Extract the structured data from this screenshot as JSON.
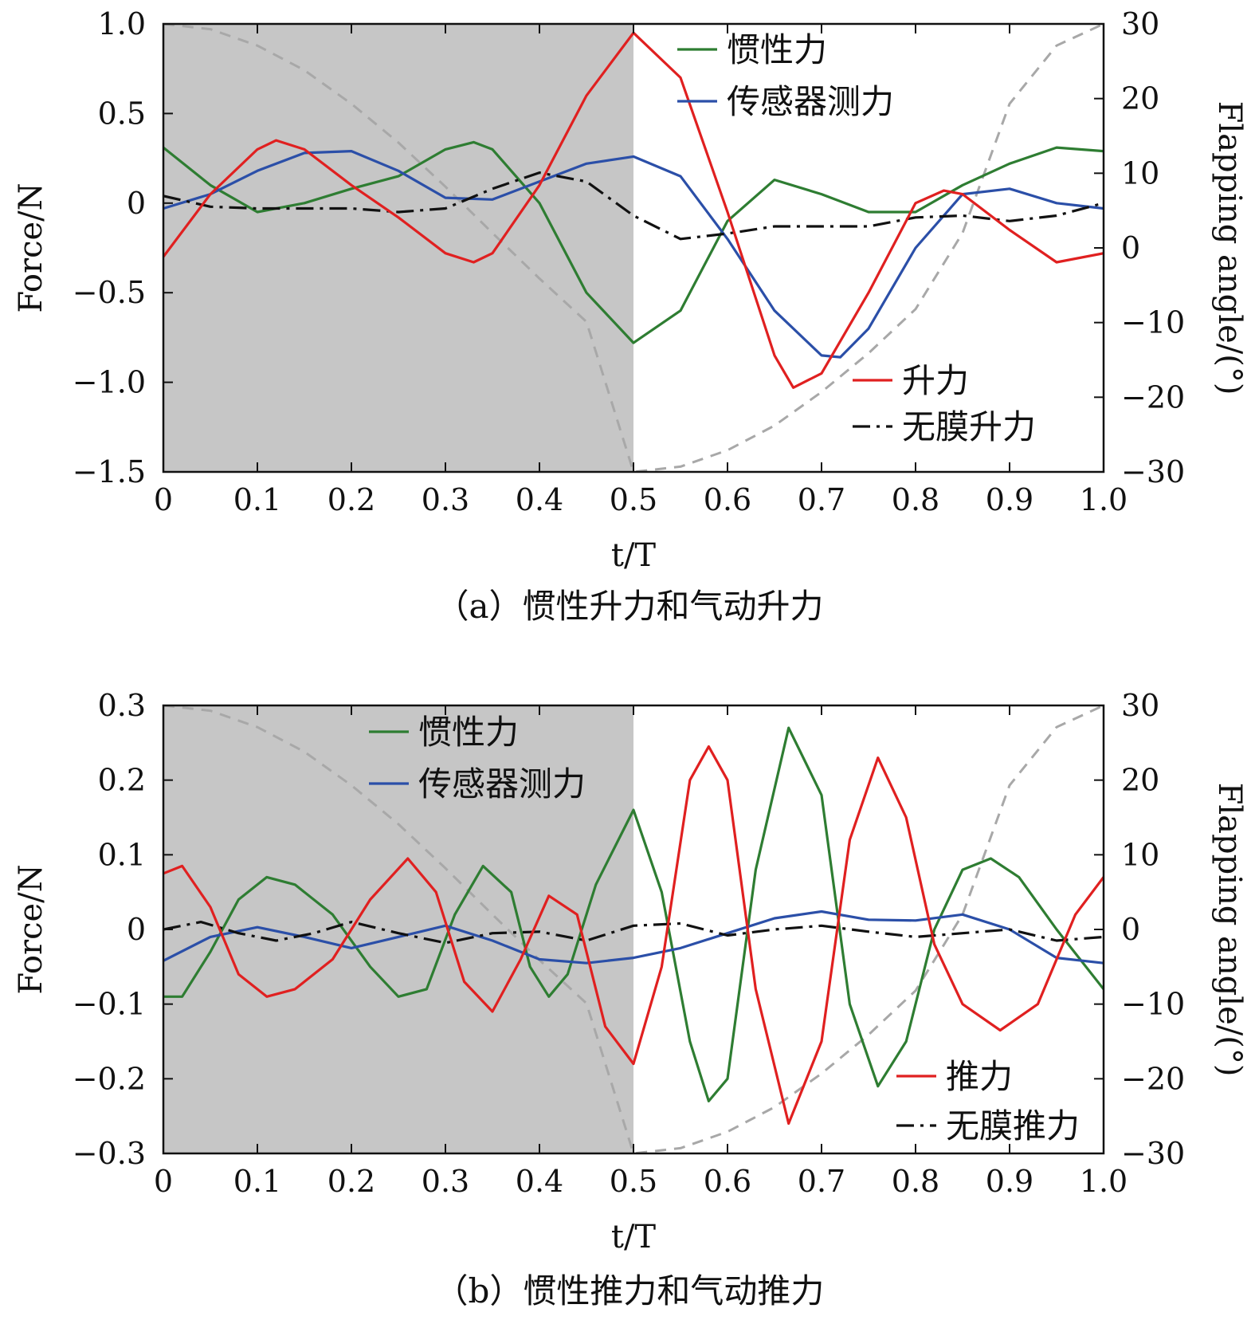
{
  "chart_data": [
    {
      "type": "line",
      "caption": "（a）惯性升力和气动升力",
      "xlabel": "t/T",
      "ylabel": "Force/N",
      "ylabel_right": "Flapping angle/(°)",
      "xlim": [
        0,
        1
      ],
      "ylim": [
        -1.5,
        1.0
      ],
      "ylim_right": [
        -30,
        30
      ],
      "x_ticks": [
        "0",
        "0.1",
        "0.2",
        "0.3",
        "0.4",
        "0.5",
        "0.6",
        "0.7",
        "0.8",
        "0.9",
        "1.0"
      ],
      "y_ticks": [
        "1.0",
        "0.5",
        "0",
        "−0.5",
        "−1.0",
        "−1.5"
      ],
      "y_right_ticks": [
        "30",
        "20",
        "10",
        "0",
        "−10",
        "−20",
        "−30"
      ],
      "shaded_region": [
        0,
        0.5
      ],
      "series": [
        {
          "name": "惯性力",
          "color": "#2e7d32",
          "style": "solid",
          "x": [
            0,
            0.05,
            0.1,
            0.15,
            0.2,
            0.25,
            0.3,
            0.33,
            0.35,
            0.4,
            0.45,
            0.5,
            0.55,
            0.6,
            0.65,
            0.7,
            0.75,
            0.8,
            0.85,
            0.9,
            0.95,
            1.0
          ],
          "y": [
            0.31,
            0.1,
            -0.05,
            0.0,
            0.08,
            0.15,
            0.3,
            0.34,
            0.3,
            0.0,
            -0.5,
            -0.78,
            -0.6,
            -0.1,
            0.13,
            0.05,
            -0.05,
            -0.05,
            0.1,
            0.22,
            0.31,
            0.29
          ]
        },
        {
          "name": "传感器测力",
          "color": "#2b4fa8",
          "style": "solid",
          "x": [
            0,
            0.05,
            0.1,
            0.15,
            0.2,
            0.25,
            0.3,
            0.35,
            0.4,
            0.45,
            0.5,
            0.55,
            0.6,
            0.65,
            0.7,
            0.72,
            0.75,
            0.8,
            0.85,
            0.9,
            0.95,
            1.0
          ],
          "y": [
            -0.03,
            0.05,
            0.18,
            0.28,
            0.29,
            0.18,
            0.03,
            0.02,
            0.12,
            0.22,
            0.26,
            0.15,
            -0.2,
            -0.6,
            -0.85,
            -0.86,
            -0.7,
            -0.25,
            0.05,
            0.08,
            0.0,
            -0.03
          ]
        },
        {
          "name": "升力",
          "color": "#e02020",
          "style": "solid",
          "x": [
            0,
            0.05,
            0.1,
            0.12,
            0.15,
            0.2,
            0.25,
            0.3,
            0.33,
            0.35,
            0.4,
            0.45,
            0.5,
            0.55,
            0.6,
            0.65,
            0.67,
            0.7,
            0.75,
            0.8,
            0.83,
            0.85,
            0.9,
            0.95,
            1.0
          ],
          "y": [
            -0.3,
            0.05,
            0.3,
            0.35,
            0.3,
            0.1,
            -0.08,
            -0.28,
            -0.33,
            -0.28,
            0.1,
            0.6,
            0.95,
            0.7,
            -0.05,
            -0.85,
            -1.03,
            -0.95,
            -0.5,
            0.0,
            0.07,
            0.05,
            -0.15,
            -0.33,
            -0.28
          ]
        },
        {
          "name": "无膜升力",
          "color": "#111111",
          "style": "dashdot",
          "x": [
            0,
            0.05,
            0.1,
            0.15,
            0.2,
            0.25,
            0.3,
            0.35,
            0.4,
            0.45,
            0.5,
            0.55,
            0.6,
            0.65,
            0.7,
            0.75,
            0.8,
            0.85,
            0.9,
            0.95,
            1.0
          ],
          "y": [
            0.04,
            -0.02,
            -0.03,
            -0.03,
            -0.03,
            -0.05,
            -0.03,
            0.08,
            0.17,
            0.12,
            -0.07,
            -0.2,
            -0.17,
            -0.13,
            -0.13,
            -0.13,
            -0.08,
            -0.07,
            -0.1,
            -0.07,
            0.0
          ]
        },
        {
          "name": "",
          "color": "#a8a8a8",
          "style": "dashed",
          "axis": "right",
          "x": [
            0,
            0.05,
            0.1,
            0.15,
            0.2,
            0.25,
            0.3,
            0.35,
            0.4,
            0.45,
            0.5,
            0.55,
            0.6,
            0.65,
            0.7,
            0.75,
            0.8,
            0.85,
            0.9,
            0.95,
            1.0
          ],
          "y": [
            30,
            29.3,
            27.1,
            23.8,
            19.3,
            14.1,
            8.2,
            2.0,
            -4.1,
            -9.9,
            -30,
            -29.3,
            -27.1,
            -23.8,
            -19.3,
            -14.1,
            -8.2,
            2.0,
            19.3,
            27.1,
            30
          ]
        }
      ]
    },
    {
      "type": "line",
      "caption": "（b）惯性推力和气动推力",
      "xlabel": "t/T",
      "ylabel": "Force/N",
      "ylabel_right": "Flapping angle/(°)",
      "xlim": [
        0,
        1
      ],
      "ylim": [
        -0.3,
        0.3
      ],
      "ylim_right": [
        -30,
        30
      ],
      "x_ticks": [
        "0",
        "0.1",
        "0.2",
        "0.3",
        "0.4",
        "0.5",
        "0.6",
        "0.7",
        "0.8",
        "0.9",
        "1.0"
      ],
      "y_ticks": [
        "0.3",
        "0.2",
        "0.1",
        "0",
        "−0.1",
        "−0.2",
        "−0.3"
      ],
      "y_right_ticks": [
        "30",
        "20",
        "10",
        "0",
        "−10",
        "−20",
        "−30"
      ],
      "shaded_region": [
        0,
        0.5
      ],
      "series": [
        {
          "name": "惯性力",
          "color": "#2e7d32",
          "style": "solid",
          "x": [
            0,
            0.02,
            0.05,
            0.08,
            0.11,
            0.14,
            0.18,
            0.22,
            0.25,
            0.28,
            0.31,
            0.34,
            0.37,
            0.39,
            0.41,
            0.43,
            0.46,
            0.5,
            0.53,
            0.56,
            0.58,
            0.6,
            0.63,
            0.665,
            0.7,
            0.73,
            0.76,
            0.79,
            0.82,
            0.85,
            0.88,
            0.91,
            0.95,
            1.0
          ],
          "y": [
            -0.09,
            -0.09,
            -0.03,
            0.04,
            0.07,
            0.06,
            0.02,
            -0.05,
            -0.09,
            -0.08,
            0.02,
            0.085,
            0.05,
            -0.05,
            -0.09,
            -0.06,
            0.06,
            0.16,
            0.05,
            -0.15,
            -0.23,
            -0.2,
            0.08,
            0.27,
            0.18,
            -0.1,
            -0.21,
            -0.15,
            0.0,
            0.08,
            0.095,
            0.07,
            0.0,
            -0.08
          ]
        },
        {
          "name": "传感器测力",
          "color": "#2b4fa8",
          "style": "solid",
          "x": [
            0,
            0.05,
            0.1,
            0.15,
            0.2,
            0.25,
            0.3,
            0.35,
            0.4,
            0.45,
            0.5,
            0.55,
            0.6,
            0.65,
            0.7,
            0.75,
            0.8,
            0.85,
            0.9,
            0.95,
            1.0
          ],
          "y": [
            -0.042,
            -0.01,
            0.003,
            -0.01,
            -0.025,
            -0.01,
            0.005,
            -0.015,
            -0.04,
            -0.045,
            -0.038,
            -0.025,
            -0.005,
            0.015,
            0.024,
            0.013,
            0.012,
            0.02,
            0.0,
            -0.038,
            -0.045
          ]
        },
        {
          "name": "推力",
          "color": "#e02020",
          "style": "solid",
          "x": [
            0,
            0.02,
            0.05,
            0.08,
            0.11,
            0.14,
            0.18,
            0.22,
            0.26,
            0.29,
            0.32,
            0.35,
            0.38,
            0.41,
            0.44,
            0.47,
            0.5,
            0.53,
            0.56,
            0.58,
            0.6,
            0.63,
            0.665,
            0.7,
            0.73,
            0.76,
            0.79,
            0.82,
            0.85,
            0.89,
            0.93,
            0.97,
            1.0
          ],
          "y": [
            0.075,
            0.085,
            0.03,
            -0.06,
            -0.09,
            -0.08,
            -0.04,
            0.04,
            0.095,
            0.05,
            -0.07,
            -0.11,
            -0.04,
            0.045,
            0.02,
            -0.13,
            -0.18,
            -0.05,
            0.2,
            0.245,
            0.2,
            -0.08,
            -0.26,
            -0.15,
            0.12,
            0.23,
            0.15,
            -0.02,
            -0.1,
            -0.135,
            -0.1,
            0.02,
            0.07
          ]
        },
        {
          "name": "无膜推力",
          "color": "#111111",
          "style": "dashdot",
          "x": [
            0,
            0.04,
            0.08,
            0.12,
            0.16,
            0.2,
            0.25,
            0.3,
            0.35,
            0.4,
            0.45,
            0.5,
            0.55,
            0.6,
            0.65,
            0.7,
            0.75,
            0.8,
            0.85,
            0.9,
            0.95,
            1.0
          ],
          "y": [
            0.0,
            0.01,
            -0.005,
            -0.015,
            -0.005,
            0.01,
            -0.005,
            -0.018,
            -0.005,
            -0.003,
            -0.015,
            0.005,
            0.008,
            -0.008,
            0.0,
            0.005,
            -0.003,
            -0.01,
            -0.005,
            0.0,
            -0.015,
            -0.01
          ]
        },
        {
          "name": "",
          "color": "#a8a8a8",
          "style": "dashed",
          "axis": "right",
          "x": [
            0,
            0.05,
            0.1,
            0.15,
            0.2,
            0.25,
            0.3,
            0.35,
            0.4,
            0.45,
            0.5,
            0.55,
            0.6,
            0.65,
            0.7,
            0.75,
            0.8,
            0.85,
            0.9,
            0.95,
            1.0
          ],
          "y": [
            30,
            29.3,
            27.1,
            23.8,
            19.3,
            14.1,
            8.2,
            2.0,
            -4.1,
            -9.9,
            -30,
            -29.3,
            -27.1,
            -23.8,
            -19.3,
            -14.1,
            -8.2,
            2.0,
            19.3,
            27.1,
            30
          ]
        }
      ]
    }
  ]
}
